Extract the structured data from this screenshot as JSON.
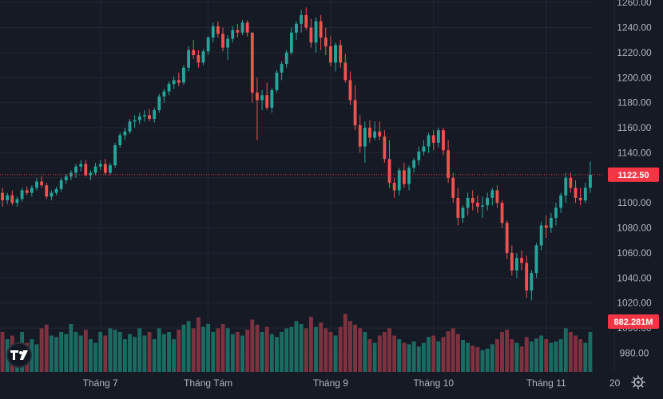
{
  "colors": {
    "background": "#161a25",
    "grid": "#232734",
    "up": "#26a69a",
    "down": "#ef5350",
    "up_volume": "#1c6b63",
    "down_volume": "#7d3240",
    "axis_text": "#b2b5be",
    "price_label_bg": "#f23645",
    "price_label_text": "#ffffff"
  },
  "icons": {
    "logo": "tradingview-logo-icon",
    "settings": "gear-icon"
  },
  "chart_data": {
    "type": "candlestick",
    "title": "",
    "xlabel": "",
    "ylabel": "",
    "ylim": [
      965,
      1262
    ],
    "grid": true,
    "y_ticks": [
      980,
      1000,
      1020,
      1040,
      1060,
      1080,
      1100,
      1120,
      1140,
      1160,
      1180,
      1200,
      1220,
      1240,
      1260
    ],
    "y_tick_labels": [
      "980.00",
      "1000.00",
      "1020.00",
      "1040.00",
      "1060.00",
      "1080.00",
      "1100.00",
      "1120.00",
      "1140.00",
      "1160.00",
      "1180.00",
      "1200.00",
      "1220.00",
      "1240.00",
      "1260.00"
    ],
    "x_tick_labels": [
      {
        "label": "Tháng 7",
        "index": 20
      },
      {
        "label": "Tháng Tám",
        "index": 42
      },
      {
        "label": "Tháng 9",
        "index": 67
      },
      {
        "label": "Tháng 10",
        "index": 88
      },
      {
        "label": "Tháng 11",
        "index": 111
      },
      {
        "label": "20",
        "index": 125
      }
    ],
    "last_price": 1122.5,
    "last_price_label": "1122.50",
    "last_volume_label": "882.281M",
    "volume_max": 1.0,
    "ohlcv": [
      [
        1108,
        1112,
        1097,
        1102,
        0.55,
        "down"
      ],
      [
        1102,
        1108,
        1099,
        1106,
        0.45,
        "up"
      ],
      [
        1106,
        1110,
        1098,
        1100,
        0.5,
        "down"
      ],
      [
        1100,
        1105,
        1097,
        1103,
        0.35,
        "up"
      ],
      [
        1103,
        1112,
        1101,
        1110,
        0.55,
        "up"
      ],
      [
        1110,
        1113,
        1106,
        1108,
        0.4,
        "down"
      ],
      [
        1108,
        1114,
        1105,
        1112,
        0.45,
        "up"
      ],
      [
        1112,
        1120,
        1110,
        1117,
        0.38,
        "up"
      ],
      [
        1117,
        1121,
        1112,
        1114,
        0.6,
        "down"
      ],
      [
        1114,
        1116,
        1103,
        1105,
        0.65,
        "down"
      ],
      [
        1105,
        1110,
        1102,
        1108,
        0.5,
        "up"
      ],
      [
        1108,
        1113,
        1106,
        1111,
        0.48,
        "up"
      ],
      [
        1111,
        1120,
        1109,
        1118,
        0.55,
        "up"
      ],
      [
        1118,
        1123,
        1115,
        1121,
        0.52,
        "up"
      ],
      [
        1121,
        1126,
        1118,
        1124,
        0.66,
        "up"
      ],
      [
        1124,
        1131,
        1120,
        1129,
        0.55,
        "up"
      ],
      [
        1129,
        1134,
        1125,
        1131,
        0.5,
        "up"
      ],
      [
        1131,
        1134,
        1121,
        1122,
        0.58,
        "down"
      ],
      [
        1122,
        1126,
        1118,
        1124,
        0.45,
        "up"
      ],
      [
        1124,
        1132,
        1122,
        1129,
        0.4,
        "up"
      ],
      [
        1129,
        1134,
        1126,
        1131,
        0.55,
        "up"
      ],
      [
        1131,
        1135,
        1122,
        1124,
        0.5,
        "down"
      ],
      [
        1124,
        1132,
        1122,
        1130,
        0.6,
        "up"
      ],
      [
        1130,
        1148,
        1128,
        1146,
        0.58,
        "up"
      ],
      [
        1146,
        1156,
        1144,
        1154,
        0.55,
        "up"
      ],
      [
        1154,
        1160,
        1150,
        1157,
        0.45,
        "up"
      ],
      [
        1157,
        1167,
        1155,
        1165,
        0.52,
        "up"
      ],
      [
        1165,
        1170,
        1160,
        1166,
        0.48,
        "up"
      ],
      [
        1166,
        1172,
        1163,
        1169,
        0.6,
        "up"
      ],
      [
        1169,
        1174,
        1165,
        1170,
        0.5,
        "up"
      ],
      [
        1170,
        1175,
        1165,
        1167,
        0.55,
        "down"
      ],
      [
        1167,
        1176,
        1164,
        1174,
        0.45,
        "up"
      ],
      [
        1174,
        1187,
        1172,
        1185,
        0.6,
        "up"
      ],
      [
        1185,
        1191,
        1180,
        1189,
        0.52,
        "up"
      ],
      [
        1189,
        1197,
        1186,
        1195,
        0.55,
        "up"
      ],
      [
        1195,
        1201,
        1191,
        1198,
        0.45,
        "up"
      ],
      [
        1198,
        1204,
        1193,
        1196,
        0.58,
        "down"
      ],
      [
        1196,
        1210,
        1194,
        1208,
        0.65,
        "up"
      ],
      [
        1208,
        1225,
        1205,
        1222,
        0.7,
        "up"
      ],
      [
        1222,
        1230,
        1215,
        1218,
        0.6,
        "down"
      ],
      [
        1218,
        1222,
        1208,
        1212,
        0.75,
        "down"
      ],
      [
        1212,
        1223,
        1210,
        1221,
        0.62,
        "up"
      ],
      [
        1221,
        1233,
        1218,
        1232,
        0.66,
        "up"
      ],
      [
        1232,
        1244,
        1228,
        1241,
        0.55,
        "up"
      ],
      [
        1241,
        1245,
        1232,
        1235,
        0.6,
        "down"
      ],
      [
        1235,
        1240,
        1221,
        1224,
        0.66,
        "down"
      ],
      [
        1224,
        1234,
        1214,
        1231,
        0.6,
        "up"
      ],
      [
        1231,
        1241,
        1228,
        1238,
        0.52,
        "up"
      ],
      [
        1238,
        1243,
        1232,
        1236,
        0.55,
        "down"
      ],
      [
        1236,
        1246,
        1234,
        1244,
        0.5,
        "up"
      ],
      [
        1244,
        1246,
        1233,
        1236,
        0.58,
        "down"
      ],
      [
        1236,
        1229,
        1180,
        1188,
        0.72,
        "down"
      ],
      [
        1188,
        1200,
        1150,
        1182,
        0.65,
        "down"
      ],
      [
        1182,
        1190,
        1174,
        1186,
        0.55,
        "up"
      ],
      [
        1186,
        1196,
        1174,
        1176,
        0.62,
        "down"
      ],
      [
        1176,
        1192,
        1172,
        1190,
        0.52,
        "up"
      ],
      [
        1190,
        1206,
        1188,
        1204,
        0.48,
        "up"
      ],
      [
        1204,
        1213,
        1198,
        1211,
        0.55,
        "up"
      ],
      [
        1211,
        1222,
        1208,
        1220,
        0.6,
        "up"
      ],
      [
        1220,
        1240,
        1218,
        1236,
        0.62,
        "up"
      ],
      [
        1236,
        1245,
        1230,
        1243,
        0.7,
        "up"
      ],
      [
        1243,
        1254,
        1236,
        1250,
        0.66,
        "up"
      ],
      [
        1250,
        1256,
        1238,
        1240,
        0.6,
        "down"
      ],
      [
        1240,
        1247,
        1224,
        1228,
        0.76,
        "down"
      ],
      [
        1228,
        1248,
        1220,
        1245,
        0.62,
        "up"
      ],
      [
        1245,
        1250,
        1222,
        1232,
        0.68,
        "down"
      ],
      [
        1232,
        1240,
        1218,
        1225,
        0.6,
        "down"
      ],
      [
        1225,
        1233,
        1209,
        1212,
        0.55,
        "down"
      ],
      [
        1212,
        1228,
        1205,
        1226,
        0.5,
        "up"
      ],
      [
        1226,
        1230,
        1208,
        1212,
        0.62,
        "down"
      ],
      [
        1212,
        1219,
        1196,
        1198,
        0.8,
        "down"
      ],
      [
        1198,
        1205,
        1178,
        1182,
        0.7,
        "down"
      ],
      [
        1182,
        1194,
        1158,
        1162,
        0.65,
        "down"
      ],
      [
        1162,
        1170,
        1140,
        1145,
        0.6,
        "down"
      ],
      [
        1145,
        1165,
        1132,
        1160,
        0.55,
        "up"
      ],
      [
        1160,
        1166,
        1148,
        1152,
        0.45,
        "down"
      ],
      [
        1152,
        1165,
        1150,
        1157,
        0.4,
        "up"
      ],
      [
        1157,
        1165,
        1150,
        1153,
        0.5,
        "down"
      ],
      [
        1153,
        1158,
        1132,
        1135,
        0.55,
        "down"
      ],
      [
        1135,
        1150,
        1112,
        1116,
        0.6,
        "down"
      ],
      [
        1116,
        1120,
        1104,
        1110,
        0.5,
        "down"
      ],
      [
        1110,
        1128,
        1106,
        1126,
        0.45,
        "up"
      ],
      [
        1126,
        1132,
        1112,
        1115,
        0.4,
        "down"
      ],
      [
        1115,
        1130,
        1110,
        1128,
        0.38,
        "up"
      ],
      [
        1128,
        1136,
        1124,
        1134,
        0.42,
        "up"
      ],
      [
        1134,
        1145,
        1130,
        1141,
        0.35,
        "up"
      ],
      [
        1141,
        1150,
        1138,
        1145,
        0.4,
        "up"
      ],
      [
        1145,
        1156,
        1140,
        1154,
        0.48,
        "up"
      ],
      [
        1154,
        1158,
        1142,
        1148,
        0.5,
        "down"
      ],
      [
        1148,
        1160,
        1144,
        1158,
        0.42,
        "up"
      ],
      [
        1158,
        1160,
        1138,
        1142,
        0.48,
        "down"
      ],
      [
        1142,
        1150,
        1116,
        1120,
        0.56,
        "down"
      ],
      [
        1120,
        1124,
        1100,
        1104,
        0.6,
        "down"
      ],
      [
        1104,
        1112,
        1082,
        1088,
        0.52,
        "down"
      ],
      [
        1088,
        1098,
        1084,
        1096,
        0.44,
        "up"
      ],
      [
        1096,
        1108,
        1090,
        1104,
        0.4,
        "up"
      ],
      [
        1104,
        1110,
        1094,
        1100,
        0.36,
        "down"
      ],
      [
        1100,
        1106,
        1092,
        1097,
        0.34,
        "down"
      ],
      [
        1097,
        1105,
        1088,
        1098,
        0.3,
        "up"
      ],
      [
        1098,
        1108,
        1094,
        1104,
        0.32,
        "up"
      ],
      [
        1104,
        1112,
        1098,
        1110,
        0.38,
        "up"
      ],
      [
        1110,
        1114,
        1096,
        1100,
        0.45,
        "down"
      ],
      [
        1100,
        1102,
        1080,
        1084,
        0.55,
        "down"
      ],
      [
        1084,
        1086,
        1055,
        1060,
        0.58,
        "down"
      ],
      [
        1060,
        1066,
        1042,
        1046,
        0.45,
        "down"
      ],
      [
        1046,
        1060,
        1040,
        1056,
        0.4,
        "up"
      ],
      [
        1056,
        1062,
        1046,
        1052,
        0.35,
        "down"
      ],
      [
        1052,
        1058,
        1024,
        1030,
        0.48,
        "down"
      ],
      [
        1030,
        1046,
        1022,
        1044,
        0.42,
        "up"
      ],
      [
        1044,
        1068,
        1040,
        1066,
        0.46,
        "up"
      ],
      [
        1066,
        1085,
        1062,
        1082,
        0.5,
        "up"
      ],
      [
        1082,
        1090,
        1072,
        1080,
        0.45,
        "down"
      ],
      [
        1080,
        1092,
        1076,
        1088,
        0.4,
        "up"
      ],
      [
        1088,
        1100,
        1082,
        1096,
        0.42,
        "up"
      ],
      [
        1096,
        1108,
        1092,
        1106,
        0.45,
        "up"
      ],
      [
        1106,
        1124,
        1100,
        1120,
        0.6,
        "up"
      ],
      [
        1120,
        1124,
        1108,
        1112,
        0.55,
        "down"
      ],
      [
        1112,
        1118,
        1100,
        1104,
        0.5,
        "down"
      ],
      [
        1104,
        1112,
        1098,
        1102,
        0.45,
        "down"
      ],
      [
        1102,
        1116,
        1100,
        1112,
        0.4,
        "up"
      ],
      [
        1112,
        1133,
        1108,
        1122.5,
        0.55,
        "up"
      ]
    ]
  }
}
